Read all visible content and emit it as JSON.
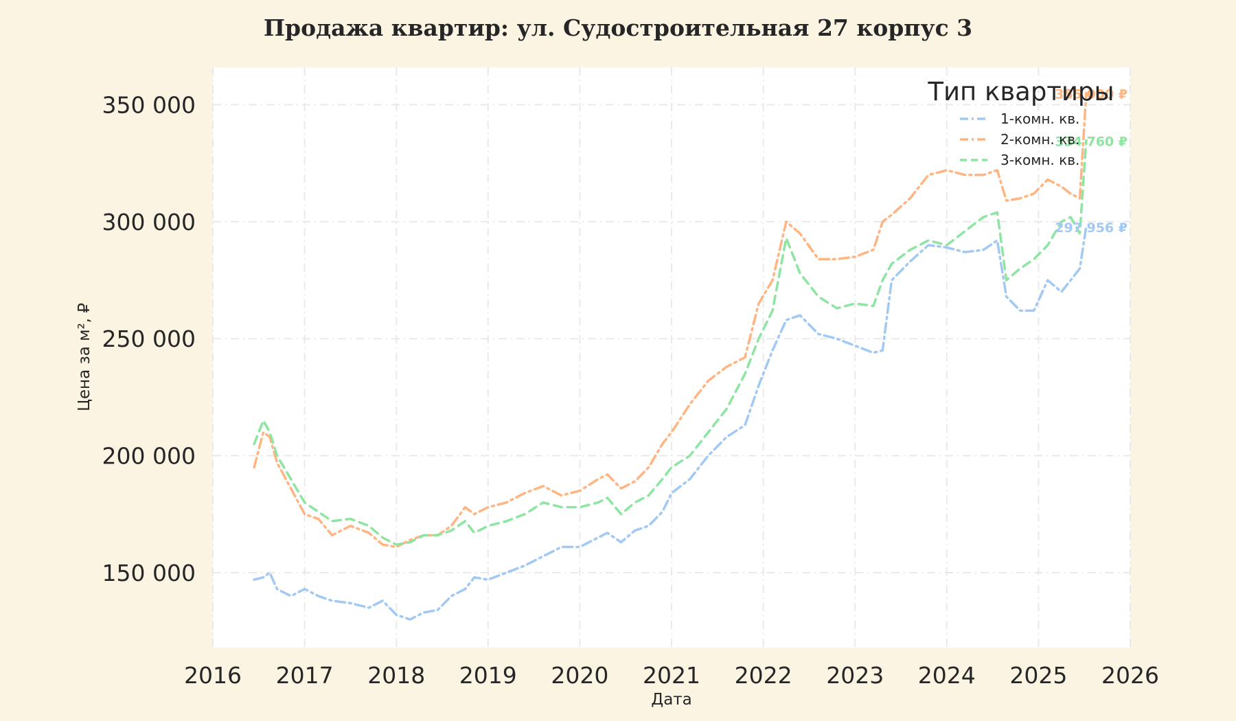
{
  "chart_data": {
    "type": "line",
    "title": "Продажа квартир: ул. Судостроительная 27 корпус 3",
    "xlabel": "Дата",
    "ylabel": "Цена за м², ₽",
    "xlim": [
      2016,
      2026
    ],
    "ylim": [
      118000,
      366000
    ],
    "x_ticks": [
      2016,
      2017,
      2018,
      2019,
      2020,
      2021,
      2022,
      2023,
      2024,
      2025,
      2026
    ],
    "y_ticks": [
      150000,
      200000,
      250000,
      300000,
      350000
    ],
    "y_tick_labels": [
      "150 000",
      "200 000",
      "250 000",
      "300 000",
      "350 000"
    ],
    "grid": true,
    "legend": {
      "title": "Тип квартиры",
      "placement": "top-right"
    },
    "x": [
      2016.45,
      2016.55,
      2016.62,
      2016.7,
      2016.85,
      2017.0,
      2017.15,
      2017.3,
      2017.5,
      2017.7,
      2017.85,
      2018.0,
      2018.15,
      2018.3,
      2018.45,
      2018.6,
      2018.75,
      2018.85,
      2019.0,
      2019.2,
      2019.4,
      2019.6,
      2019.8,
      2020.0,
      2020.2,
      2020.3,
      2020.45,
      2020.6,
      2020.75,
      2020.9,
      2021.0,
      2021.2,
      2021.4,
      2021.6,
      2021.8,
      2021.95,
      2022.1,
      2022.25,
      2022.4,
      2022.6,
      2022.8,
      2023.0,
      2023.2,
      2023.3,
      2023.4,
      2023.6,
      2023.8,
      2024.0,
      2024.2,
      2024.4,
      2024.55,
      2024.65,
      2024.8,
      2024.95,
      2025.1,
      2025.25,
      2025.35,
      2025.45,
      2025.52
    ],
    "series": [
      {
        "name": "1-комн. кв.",
        "color": "#a1c9f4",
        "dash": "14 6 3 6",
        "values": [
          147000,
          148000,
          150000,
          143000,
          140000,
          143000,
          140000,
          138000,
          137000,
          135000,
          138000,
          132000,
          130000,
          133000,
          134000,
          140000,
          143000,
          148000,
          147000,
          150000,
          153000,
          157000,
          161000,
          161000,
          165000,
          167000,
          163000,
          168000,
          170000,
          176000,
          184000,
          190000,
          200000,
          208000,
          213000,
          230000,
          245000,
          258000,
          260000,
          252000,
          250000,
          247000,
          244000,
          245000,
          275000,
          283000,
          290000,
          289000,
          287000,
          288000,
          292000,
          268000,
          262000,
          262000,
          275000,
          270000,
          275000,
          280000,
          297956
        ],
        "end_label": "297 956 ₽"
      },
      {
        "name": "2-комн. кв.",
        "color": "#ffb482",
        "dash": "14 6 3 6",
        "values": [
          195000,
          210000,
          208000,
          197000,
          186000,
          175000,
          173000,
          166000,
          170000,
          167000,
          162000,
          161000,
          164000,
          166000,
          166000,
          170000,
          178000,
          175000,
          178000,
          180000,
          184000,
          187000,
          183000,
          185000,
          190000,
          192000,
          186000,
          189000,
          195000,
          205000,
          210000,
          222000,
          232000,
          238000,
          242000,
          265000,
          275000,
          300000,
          295000,
          284000,
          284000,
          285000,
          288000,
          300000,
          303000,
          310000,
          320000,
          322000,
          320000,
          320000,
          322000,
          309000,
          310000,
          312000,
          318000,
          315000,
          312000,
          310000,
          355000
        ],
        "end_label": "355 000 ₽"
      },
      {
        "name": "3-комн. кв.",
        "color": "#8de5a1",
        "dash": "12 8",
        "values": [
          205000,
          215000,
          210000,
          200000,
          190000,
          180000,
          176000,
          172000,
          173000,
          170000,
          165000,
          162000,
          163000,
          166000,
          166000,
          168000,
          172000,
          167000,
          170000,
          172000,
          175000,
          180000,
          178000,
          178000,
          180000,
          182000,
          175000,
          180000,
          183000,
          190000,
          195000,
          200000,
          210000,
          220000,
          235000,
          250000,
          262000,
          293000,
          278000,
          268000,
          263000,
          265000,
          264000,
          275000,
          282000,
          288000,
          292000,
          290000,
          296000,
          302000,
          304000,
          275000,
          280000,
          284000,
          290000,
          300000,
          302000,
          295000,
          334760
        ],
        "end_label": "334 760 ₽"
      }
    ]
  }
}
